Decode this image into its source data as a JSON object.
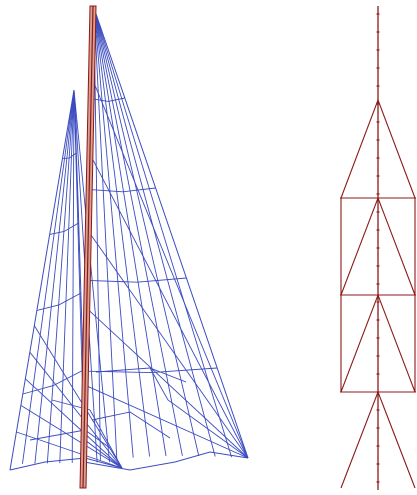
{
  "figure": {
    "left_panel": "sail-wireframe",
    "right_panel": "mast-rigging-frame"
  },
  "colors": {
    "sail_mesh": "#3b4cc0",
    "mast_mesh": "#8b1a1a",
    "mast_fill": "#d9a090",
    "background": "#ffffff"
  }
}
